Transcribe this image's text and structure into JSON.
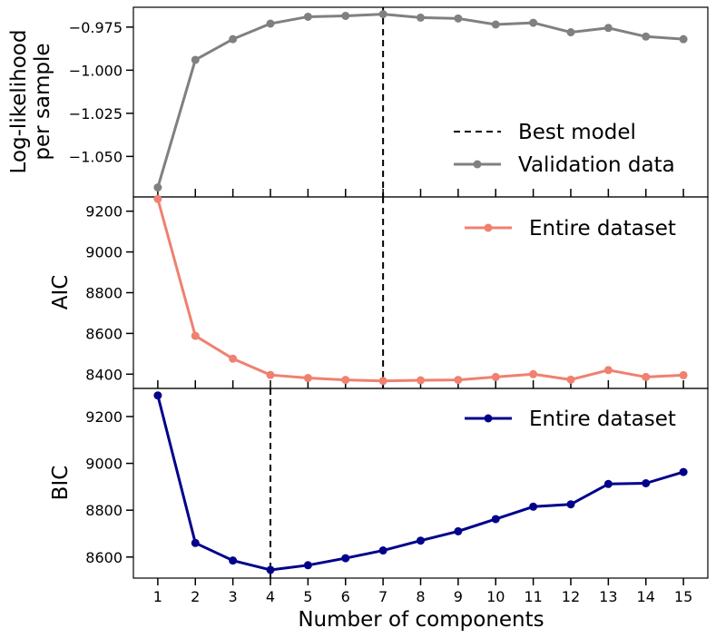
{
  "chart_data": [
    {
      "type": "line",
      "ylabel": [
        "Log-likelihood",
        "per sample"
      ],
      "ylim": [
        -1.0735,
        -0.9635
      ],
      "yticks": [
        -1.05,
        -1.025,
        -1.0,
        -0.975
      ],
      "ytick_labels": [
        "−1.050",
        "−1.025",
        "−1.000",
        "−0.975"
      ],
      "series": [
        {
          "name": "Validation data",
          "color": "#808080",
          "x": [
            1,
            2,
            3,
            4,
            5,
            6,
            7,
            8,
            9,
            10,
            11,
            12,
            13,
            14,
            15
          ],
          "values": [
            -1.068,
            -0.994,
            -0.982,
            -0.973,
            -0.969,
            -0.9685,
            -0.9675,
            -0.9695,
            -0.97,
            -0.9735,
            -0.9725,
            -0.978,
            -0.9755,
            -0.9805,
            -0.982
          ]
        }
      ],
      "best_model_x": 7,
      "legend": [
        "Best model",
        "Validation data"
      ],
      "legend_position": "lower-right"
    },
    {
      "type": "line",
      "ylabel": [
        "AIC"
      ],
      "ylim": [
        8330,
        9270
      ],
      "yticks": [
        8400,
        8600,
        8800,
        9000,
        9200
      ],
      "ytick_labels": [
        "8400",
        "8600",
        "8800",
        "9000",
        "9200"
      ],
      "series": [
        {
          "name": "Entire dataset",
          "color": "#f08070",
          "x": [
            1,
            2,
            3,
            4,
            5,
            6,
            7,
            8,
            9,
            10,
            11,
            12,
            13,
            14,
            15
          ],
          "values": [
            9260,
            8588,
            8476,
            8396,
            8381,
            8372,
            8367,
            8370,
            8372,
            8386,
            8400,
            8373,
            8420,
            8386,
            8395
          ]
        }
      ],
      "best_model_x": 7,
      "legend": [
        "Entire dataset"
      ],
      "legend_position": "upper-right"
    },
    {
      "type": "line",
      "ylabel": [
        "BIC"
      ],
      "xlabel": "Number of components",
      "ylim": [
        8510,
        9320
      ],
      "yticks": [
        8600,
        8800,
        9000,
        9200
      ],
      "ytick_labels": [
        "8600",
        "8800",
        "9000",
        "9200"
      ],
      "xticks": [
        1,
        2,
        3,
        4,
        5,
        6,
        7,
        8,
        9,
        10,
        11,
        12,
        13,
        14,
        15
      ],
      "xtick_labels": [
        "1",
        "2",
        "3",
        "4",
        "5",
        "6",
        "7",
        "8",
        "9",
        "10",
        "11",
        "12",
        "13",
        "14",
        "15"
      ],
      "series": [
        {
          "name": "Entire dataset",
          "color": "#00008b",
          "x": [
            1,
            2,
            3,
            4,
            5,
            6,
            7,
            8,
            9,
            10,
            11,
            12,
            13,
            14,
            15
          ],
          "values": [
            9290,
            8660,
            8585,
            8545,
            8565,
            8595,
            8628,
            8670,
            8710,
            8762,
            8815,
            8825,
            8912,
            8915,
            8963
          ]
        }
      ],
      "best_model_x": 4,
      "legend": [
        "Entire dataset"
      ],
      "legend_position": "upper-right"
    }
  ],
  "xlim": [
    0.35,
    15.65
  ]
}
